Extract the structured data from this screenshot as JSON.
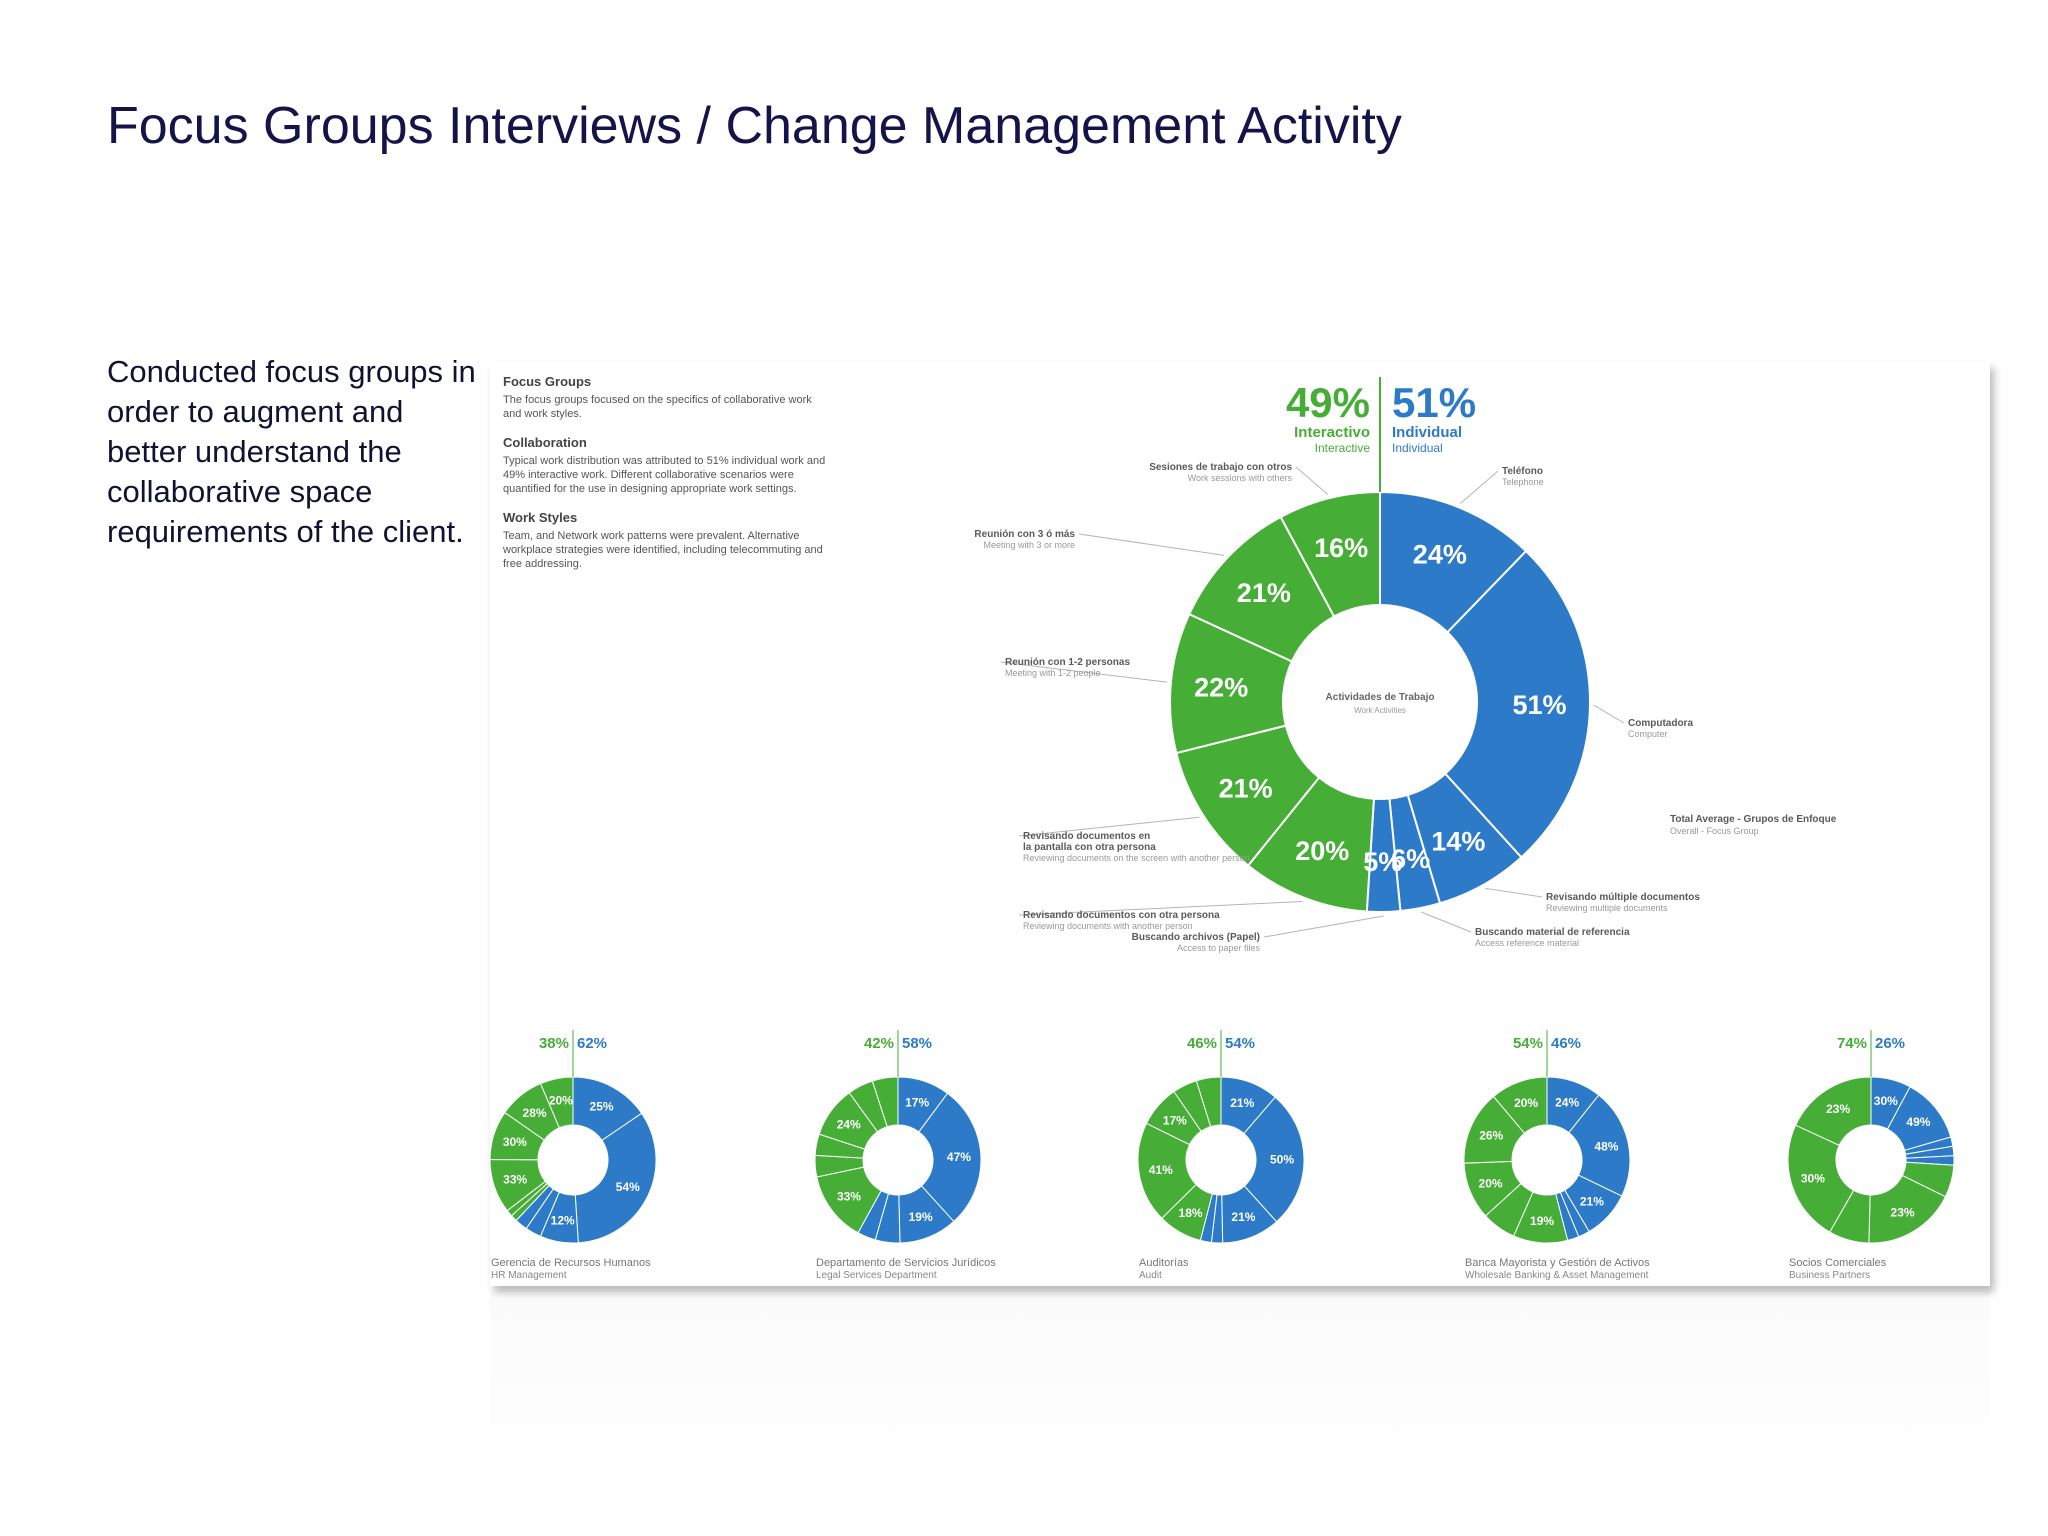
{
  "title": "Focus Groups Interviews / Change Management Activity",
  "intro": "Conducted focus groups in order to augment and better understand the collaborative space requirements of the client.",
  "notes": [
    {
      "heading": "Focus Groups",
      "text": "The focus groups focused on the specifics of collaborative work and work styles."
    },
    {
      "heading": "Collaboration",
      "text": "Typical work distribution was attributed to 51% individual work and 49% interactive work. Different collaborative scenarios were quantified for the use in designing appropriate work settings."
    },
    {
      "heading": "Work Styles",
      "text": "Team, and Network work patterns were prevalent. Alternative workplace strategies were identified, including telecommuting and free addressing."
    }
  ],
  "colors": {
    "interactive": "#46ad36",
    "individual": "#2d7bc8"
  },
  "chart_data": [
    {
      "type": "pie",
      "title": "Actividades de Trabajo",
      "subtitle": "Work Activities",
      "caption": "Total Average - Grupos de Enfoque",
      "caption_sub": "Overall - Focus Group",
      "split": [
        {
          "pct": "49%",
          "label": "Interactivo",
          "sub": "Interactive",
          "group": "interactive"
        },
        {
          "pct": "51%",
          "label": "Individual",
          "sub": "Individual",
          "group": "individual"
        }
      ],
      "slices": [
        {
          "value": 24,
          "label": "24%",
          "group": "individual",
          "name": "Teléfono",
          "sub": "Telephone"
        },
        {
          "value": 51,
          "label": "51%",
          "group": "individual",
          "name": "Computadora",
          "sub": "Computer"
        },
        {
          "value": 14,
          "label": "14%",
          "group": "individual",
          "name": "Revisando múltiple documentos",
          "sub": "Reviewing multiple documents"
        },
        {
          "value": 6,
          "label": "6%",
          "group": "individual",
          "name": "Buscando material de referencia",
          "sub": "Access reference material"
        },
        {
          "value": 5,
          "label": "5%",
          "group": "individual",
          "name": "Buscando archivos (Papel)",
          "sub": "Access to paper files"
        },
        {
          "value": 20,
          "label": "20%",
          "group": "interactive",
          "name": "Revisando documentos con otra persona",
          "sub": "Reviewing documents with another person"
        },
        {
          "value": 21,
          "label": "21%",
          "group": "interactive",
          "name": "Revisando documentos en la pantalla con otra persona",
          "sub": "Reviewing documents on the screen with another person"
        },
        {
          "value": 22,
          "label": "22%",
          "group": "interactive",
          "name": "Reunión con 1-2 personas",
          "sub": "Meeting with 1-2 people"
        },
        {
          "value": 21,
          "label": "21%",
          "group": "interactive",
          "name": "Reunión con 3 ó más",
          "sub": "Meeting with 3 or more"
        },
        {
          "value": 16,
          "label": "16%",
          "group": "interactive",
          "name": "Sesiones de trabajo con otros",
          "sub": "Work sessions with others"
        }
      ]
    },
    {
      "type": "pie",
      "caption": "Gerencia de Recursos Humanos",
      "caption_sub": "HR Management",
      "split": [
        {
          "pct": "38%",
          "group": "interactive"
        },
        {
          "pct": "62%",
          "group": "individual"
        }
      ],
      "slices": [
        {
          "value": 25,
          "label": "25%",
          "group": "individual"
        },
        {
          "value": 54,
          "label": "54%",
          "group": "individual"
        },
        {
          "value": 12,
          "label": "12%",
          "group": "individual"
        },
        {
          "value": 5,
          "label": "",
          "group": "individual"
        },
        {
          "value": 4,
          "label": "",
          "group": "individual"
        },
        {
          "value": 4,
          "label": "",
          "group": "interactive"
        },
        {
          "value": 4,
          "label": "",
          "group": "interactive"
        },
        {
          "value": 33,
          "label": "33%",
          "group": "interactive"
        },
        {
          "value": 30,
          "label": "30%",
          "group": "interactive"
        },
        {
          "value": 28,
          "label": "28%",
          "group": "interactive"
        },
        {
          "value": 20,
          "label": "20%",
          "group": "interactive"
        }
      ]
    },
    {
      "type": "pie",
      "caption": "Departamento de Servicios Jurídicos",
      "caption_sub": "Legal Services Department",
      "split": [
        {
          "pct": "42%",
          "group": "interactive"
        },
        {
          "pct": "58%",
          "group": "individual"
        }
      ],
      "slices": [
        {
          "value": 17,
          "label": "17%",
          "group": "individual"
        },
        {
          "value": 47,
          "label": "47%",
          "group": "individual"
        },
        {
          "value": 19,
          "label": "19%",
          "group": "individual"
        },
        {
          "value": 8,
          "label": "",
          "group": "individual"
        },
        {
          "value": 6,
          "label": "",
          "group": "individual"
        },
        {
          "value": 33,
          "label": "33%",
          "group": "interactive"
        },
        {
          "value": 10,
          "label": "",
          "group": "interactive"
        },
        {
          "value": 10,
          "label": "",
          "group": "interactive"
        },
        {
          "value": 24,
          "label": "24%",
          "group": "interactive"
        },
        {
          "value": 12,
          "label": "",
          "group": "interactive"
        },
        {
          "value": 12,
          "label": "",
          "group": "interactive"
        }
      ]
    },
    {
      "type": "pie",
      "caption": "Auditorías",
      "caption_sub": "Audit",
      "split": [
        {
          "pct": "46%",
          "group": "interactive"
        },
        {
          "pct": "54%",
          "group": "individual"
        }
      ],
      "slices": [
        {
          "value": 21,
          "label": "21%",
          "group": "individual"
        },
        {
          "value": 50,
          "label": "50%",
          "group": "individual"
        },
        {
          "value": 21,
          "label": "21%",
          "group": "individual"
        },
        {
          "value": 4,
          "label": "",
          "group": "individual"
        },
        {
          "value": 4,
          "label": "",
          "group": "individual"
        },
        {
          "value": 18,
          "label": "18%",
          "group": "interactive"
        },
        {
          "value": 41,
          "label": "41%",
          "group": "interactive"
        },
        {
          "value": 17,
          "label": "17%",
          "group": "interactive"
        },
        {
          "value": 10,
          "label": "",
          "group": "interactive"
        },
        {
          "value": 10,
          "label": "",
          "group": "interactive"
        }
      ]
    },
    {
      "type": "pie",
      "caption": "Banca Mayorista y Gestión de Activos",
      "caption_sub": "Wholesale Banking & Asset Management",
      "split": [
        {
          "pct": "54%",
          "group": "interactive"
        },
        {
          "pct": "46%",
          "group": "individual"
        }
      ],
      "slices": [
        {
          "value": 24,
          "label": "24%",
          "group": "individual"
        },
        {
          "value": 48,
          "label": "48%",
          "group": "individual"
        },
        {
          "value": 21,
          "label": "21%",
          "group": "individual"
        },
        {
          "value": 5,
          "label": "",
          "group": "individual"
        },
        {
          "value": 5,
          "label": "",
          "group": "individual"
        },
        {
          "value": 19,
          "label": "19%",
          "group": "interactive"
        },
        {
          "value": 12,
          "label": "",
          "group": "interactive"
        },
        {
          "value": 20,
          "label": "20%",
          "group": "interactive"
        },
        {
          "value": 26,
          "label": "26%",
          "group": "interactive"
        },
        {
          "value": 20,
          "label": "20%",
          "group": "interactive"
        }
      ]
    },
    {
      "type": "pie",
      "caption": "Socios Comerciales",
      "caption_sub": "Business Partners",
      "split": [
        {
          "pct": "74%",
          "group": "interactive"
        },
        {
          "pct": "26%",
          "group": "individual"
        }
      ],
      "slices": [
        {
          "value": 30,
          "label": "30%",
          "group": "individual"
        },
        {
          "value": 49,
          "label": "49%",
          "group": "individual"
        },
        {
          "value": 7,
          "label": "",
          "group": "individual"
        },
        {
          "value": 7,
          "label": "",
          "group": "individual"
        },
        {
          "value": 7,
          "label": "",
          "group": "individual"
        },
        {
          "value": 8,
          "label": "",
          "group": "interactive"
        },
        {
          "value": 23,
          "label": "23%",
          "group": "interactive"
        },
        {
          "value": 10,
          "label": "",
          "group": "interactive"
        },
        {
          "value": 30,
          "label": "30%",
          "group": "interactive"
        },
        {
          "value": 23,
          "label": "23%",
          "group": "interactive"
        }
      ]
    }
  ]
}
